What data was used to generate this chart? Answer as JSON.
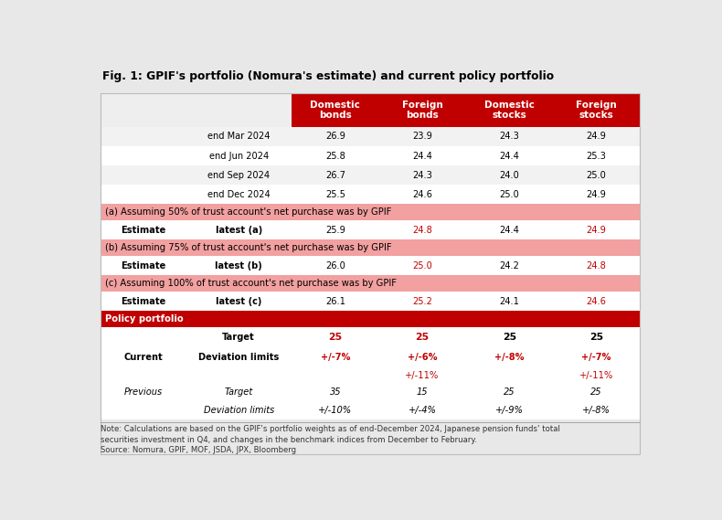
{
  "title": "Fig. 1: GPIF's portfolio (Nomura's estimate) and current policy portfolio",
  "col_headers": [
    "Domestic\nbonds",
    "Foreign\nbonds",
    "Domestic\nstocks",
    "Foreign\nstocks"
  ],
  "header_bg": "#c00000",
  "header_fg": "#ffffff",
  "rows": [
    {
      "type": "data",
      "label1": "",
      "label2": "end Mar 2024",
      "values": [
        "26.9",
        "23.9",
        "24.3",
        "24.9"
      ],
      "bg": "#f2f2f2",
      "fg": "#000000",
      "value_colors": [
        "#000000",
        "#000000",
        "#000000",
        "#000000"
      ],
      "label1_bold": false,
      "label2_bold": false,
      "italic": false
    },
    {
      "type": "data",
      "label1": "",
      "label2": "end Jun 2024",
      "values": [
        "25.8",
        "24.4",
        "24.4",
        "25.3"
      ],
      "bg": "#ffffff",
      "fg": "#000000",
      "value_colors": [
        "#000000",
        "#000000",
        "#000000",
        "#000000"
      ],
      "label1_bold": false,
      "label2_bold": false,
      "italic": false
    },
    {
      "type": "data",
      "label1": "",
      "label2": "end Sep 2024",
      "values": [
        "26.7",
        "24.3",
        "24.0",
        "25.0"
      ],
      "bg": "#f2f2f2",
      "fg": "#000000",
      "value_colors": [
        "#000000",
        "#000000",
        "#000000",
        "#000000"
      ],
      "label1_bold": false,
      "label2_bold": false,
      "italic": false
    },
    {
      "type": "data",
      "label1": "",
      "label2": "end Dec 2024",
      "values": [
        "25.5",
        "24.6",
        "25.0",
        "24.9"
      ],
      "bg": "#ffffff",
      "fg": "#000000",
      "value_colors": [
        "#000000",
        "#000000",
        "#000000",
        "#000000"
      ],
      "label1_bold": false,
      "label2_bold": false,
      "italic": false
    },
    {
      "type": "section_header",
      "label1": "(a) Assuming 50% of trust account's net purchase was by GPIF",
      "label2": "",
      "values": [
        "",
        "",
        "",
        ""
      ],
      "bg": "#f2a0a0",
      "fg": "#000000",
      "value_colors": [
        "#000000",
        "#000000",
        "#000000",
        "#000000"
      ],
      "label1_bold": false,
      "label2_bold": false,
      "italic": false
    },
    {
      "type": "data",
      "label1": "Estimate",
      "label2": "latest (a)",
      "values": [
        "25.9",
        "24.8",
        "24.4",
        "24.9"
      ],
      "bg": "#ffffff",
      "fg": "#000000",
      "value_colors": [
        "#000000",
        "#c00000",
        "#000000",
        "#c00000"
      ],
      "label1_bold": true,
      "label2_bold": true,
      "italic": false
    },
    {
      "type": "section_header",
      "label1": "(b) Assuming 75% of trust account's net purchase was by GPIF",
      "label2": "",
      "values": [
        "",
        "",
        "",
        ""
      ],
      "bg": "#f2a0a0",
      "fg": "#000000",
      "value_colors": [
        "#000000",
        "#000000",
        "#000000",
        "#000000"
      ],
      "label1_bold": false,
      "label2_bold": false,
      "italic": false
    },
    {
      "type": "data",
      "label1": "Estimate",
      "label2": "latest (b)",
      "values": [
        "26.0",
        "25.0",
        "24.2",
        "24.8"
      ],
      "bg": "#ffffff",
      "fg": "#000000",
      "value_colors": [
        "#000000",
        "#c00000",
        "#000000",
        "#c00000"
      ],
      "label1_bold": true,
      "label2_bold": true,
      "italic": false
    },
    {
      "type": "section_header",
      "label1": "(c) Assuming 100% of trust account's net purchase was by GPIF",
      "label2": "",
      "values": [
        "",
        "",
        "",
        ""
      ],
      "bg": "#f2a0a0",
      "fg": "#000000",
      "value_colors": [
        "#000000",
        "#000000",
        "#000000",
        "#000000"
      ],
      "label1_bold": false,
      "label2_bold": false,
      "italic": false
    },
    {
      "type": "data",
      "label1": "Estimate",
      "label2": "latest (c)",
      "values": [
        "26.1",
        "25.2",
        "24.1",
        "24.6"
      ],
      "bg": "#ffffff",
      "fg": "#000000",
      "value_colors": [
        "#000000",
        "#c00000",
        "#000000",
        "#c00000"
      ],
      "label1_bold": true,
      "label2_bold": true,
      "italic": false
    },
    {
      "type": "section_header_dark",
      "label1": "Policy portfolio",
      "label2": "",
      "values": [
        "",
        "",
        "",
        ""
      ],
      "bg": "#c00000",
      "fg": "#ffffff",
      "value_colors": [
        "#ffffff",
        "#ffffff",
        "#ffffff",
        "#ffffff"
      ],
      "label1_bold": true,
      "label2_bold": false,
      "italic": false
    },
    {
      "type": "policy",
      "label1": "",
      "label2": "Target",
      "values": [
        "25",
        "25",
        "25",
        "25"
      ],
      "bg": "#ffffff",
      "fg": "#000000",
      "value_colors": [
        "#c00000",
        "#c00000",
        "#000000",
        "#000000"
      ],
      "label1_bold": false,
      "label2_bold": true,
      "italic": false
    },
    {
      "type": "policy",
      "label1": "Current",
      "label2": "Deviation limits",
      "values": [
        "+/-7%",
        "+/-6%",
        "+/-8%",
        "+/-7%"
      ],
      "bg": "#ffffff",
      "fg": "#000000",
      "value_colors": [
        "#c00000",
        "#c00000",
        "#c00000",
        "#c00000"
      ],
      "label1_bold": true,
      "label2_bold": true,
      "italic": false
    },
    {
      "type": "policy_extra",
      "label1": "",
      "label2": "",
      "values": [
        "",
        "+/-11%",
        "",
        "+/-11%"
      ],
      "bg": "#ffffff",
      "fg": "#000000",
      "value_colors": [
        "#c00000",
        "#c00000",
        "#c00000",
        "#c00000"
      ],
      "label1_bold": false,
      "label2_bold": false,
      "italic": false
    },
    {
      "type": "policy_prev",
      "label1": "Previous",
      "label2": "Target",
      "values": [
        "35",
        "15",
        "25",
        "25"
      ],
      "bg": "#ffffff",
      "fg": "#000000",
      "value_colors": [
        "#000000",
        "#000000",
        "#000000",
        "#000000"
      ],
      "label1_bold": false,
      "label2_bold": false,
      "italic": true
    },
    {
      "type": "policy_prev",
      "label1": "",
      "label2": "Deviation limits",
      "values": [
        "+/-10%",
        "+/-4%",
        "+/-9%",
        "+/-8%"
      ],
      "bg": "#ffffff",
      "fg": "#000000",
      "value_colors": [
        "#000000",
        "#000000",
        "#000000",
        "#000000"
      ],
      "label1_bold": false,
      "label2_bold": false,
      "italic": true
    }
  ],
  "note1": "Note: Calculations are based on the GPIF's portfolio weights as of end-December 2024, Japanese pension funds' total",
  "note2": "securities investment in Q4, and changes in the benchmark indices from December to February.",
  "note3": "Source: Nomura, GPIF, MOF, JSDA, JPX, Bloomberg",
  "outer_bg": "#e8e8e8"
}
